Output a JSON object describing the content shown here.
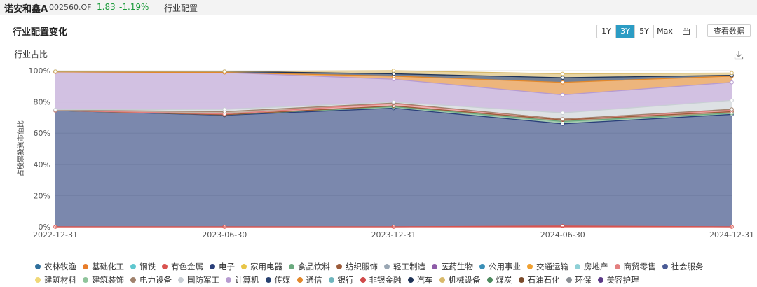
{
  "header": {
    "fund_name": "诺安和鑫A",
    "fund_code": "002560.OF",
    "price": "1.83",
    "change": "-1.19%",
    "crumb": "行业配置"
  },
  "panel": {
    "title": "行业配置变化",
    "ranges": [
      "1Y",
      "3Y",
      "5Y",
      "Max"
    ],
    "active_range": "3Y",
    "view_data_label": "查看数据",
    "calendar_icon": "calendar-icon",
    "download_icon": "download-icon"
  },
  "chart_data": {
    "type": "area",
    "stacked": true,
    "title": "行业占比",
    "ylabel": "占股票投资市值比",
    "x": [
      "2022-12-31",
      "2023-06-30",
      "2023-12-31",
      "2024-06-30",
      "2024-12-31"
    ],
    "yticks": [
      "0%",
      "20%",
      "40%",
      "60%",
      "80%",
      "100%"
    ],
    "ylim": [
      0,
      100
    ],
    "grid": true,
    "series": [
      {
        "name": "农林牧渔",
        "color": "#2f6f9c",
        "values": [
          0,
          0,
          0,
          0,
          0
        ]
      },
      {
        "name": "基础化工",
        "color": "#e87d2a",
        "values": [
          0,
          0,
          0,
          0,
          0
        ]
      },
      {
        "name": "钢铁",
        "color": "#5fc7cf",
        "values": [
          0,
          0,
          0,
          0,
          0
        ]
      },
      {
        "name": "有色金属",
        "color": "#d9534f",
        "values": [
          0,
          0,
          0,
          0.5,
          0
        ]
      },
      {
        "name": "电子",
        "color": "#2a3f7a",
        "values": [
          74.5,
          71.5,
          76,
          65.5,
          72
        ]
      },
      {
        "name": "家用电器",
        "color": "#e8c547",
        "values": [
          0,
          0,
          0,
          0,
          0
        ]
      },
      {
        "name": "食品饮料",
        "color": "#6aaa7e",
        "values": [
          0,
          0.3,
          1,
          1.5,
          0.8
        ]
      },
      {
        "name": "纺织服饰",
        "color": "#9b5b3a",
        "values": [
          0,
          0,
          0.5,
          1,
          1
        ]
      },
      {
        "name": "轻工制造",
        "color": "#9aa7b4",
        "values": [
          0,
          0,
          0,
          0,
          0
        ]
      },
      {
        "name": "医药生物",
        "color": "#8e5ca8",
        "values": [
          0,
          0,
          0,
          0,
          0
        ]
      },
      {
        "name": "公用事业",
        "color": "#3a8fb7",
        "values": [
          0,
          0,
          0,
          0,
          0
        ]
      },
      {
        "name": "交通运输",
        "color": "#f0a030",
        "values": [
          0,
          0,
          0,
          0,
          0
        ]
      },
      {
        "name": "房地产",
        "color": "#8fd0d6",
        "values": [
          0,
          0,
          0,
          0,
          0
        ]
      },
      {
        "name": "商贸零售",
        "color": "#e37f7f",
        "values": [
          0,
          0.5,
          1.5,
          0.5,
          1
        ]
      },
      {
        "name": "社会服务",
        "color": "#4a5b96",
        "values": [
          0,
          0,
          0,
          0,
          0
        ]
      },
      {
        "name": "建筑材料",
        "color": "#f0d878",
        "values": [
          0,
          0,
          0,
          0,
          0
        ]
      },
      {
        "name": "建筑装饰",
        "color": "#8fc49b",
        "values": [
          0,
          0,
          0,
          0,
          0
        ]
      },
      {
        "name": "电力设备",
        "color": "#a0826d",
        "values": [
          0.3,
          1.5,
          0.3,
          0,
          0.5
        ]
      },
      {
        "name": "国防军工",
        "color": "#c8ced4",
        "values": [
          0.2,
          1.5,
          0.7,
          4,
          5.7
        ]
      },
      {
        "name": "计算机",
        "color": "#b69bd0",
        "values": [
          24.2,
          23.5,
          14.5,
          11.5,
          11.5
        ]
      },
      {
        "name": "传媒",
        "color": "#27406f",
        "values": [
          0,
          0,
          0,
          0,
          0
        ]
      },
      {
        "name": "通信",
        "color": "#e2882b",
        "values": [
          0,
          0,
          2,
          8,
          4
        ]
      },
      {
        "name": "银行",
        "color": "#6fb5bd",
        "values": [
          0,
          0,
          0,
          0,
          0
        ]
      },
      {
        "name": "非银金融",
        "color": "#d04a4a",
        "values": [
          0,
          0,
          0,
          0,
          0
        ]
      },
      {
        "name": "汽车",
        "color": "#1f3356",
        "values": [
          0.3,
          0.7,
          1.5,
          3,
          0.5
        ]
      },
      {
        "name": "机械设备",
        "color": "#d8b96a",
        "values": [
          0,
          0,
          2,
          2.5,
          1.5
        ]
      },
      {
        "name": "煤炭",
        "color": "#4e8a5f",
        "values": [
          0,
          0,
          0,
          0,
          0
        ]
      },
      {
        "name": "石油石化",
        "color": "#7a4a2a",
        "values": [
          0,
          0,
          0,
          0,
          0
        ]
      },
      {
        "name": "环保",
        "color": "#8a8f94",
        "values": [
          0,
          0,
          0,
          0,
          0
        ]
      },
      {
        "name": "美容护理",
        "color": "#5b3a86",
        "values": [
          0,
          0,
          0,
          0,
          0
        ]
      }
    ]
  }
}
